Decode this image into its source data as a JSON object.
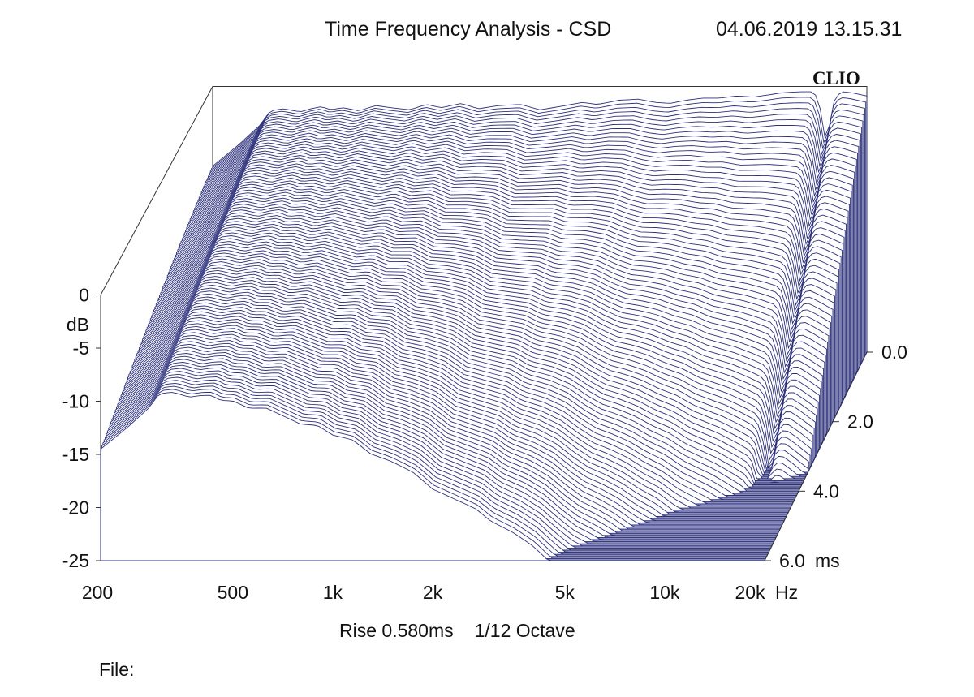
{
  "header": {
    "title": "Time Frequency Analysis - CSD",
    "timestamp": "04.06.2019 13.15.31"
  },
  "logo_text": "CLIO",
  "footer": {
    "rise": "Rise 0.580ms",
    "smoothing": "1/12 Octave"
  },
  "file_label": "File:",
  "colors": {
    "trace": "#2b2f7a",
    "fill": "#ffffff",
    "frame": "#333333"
  },
  "chart_data": {
    "type": "waterfall",
    "title": "Time Frequency Analysis - CSD",
    "x_axis": {
      "label": "Hz",
      "scale": "log",
      "range": [
        200,
        20000
      ],
      "ticks": [
        {
          "value": 200,
          "label": "200"
        },
        {
          "value": 500,
          "label": "500"
        },
        {
          "value": 1000,
          "label": "1k"
        },
        {
          "value": 2000,
          "label": "2k"
        },
        {
          "value": 5000,
          "label": "5k"
        },
        {
          "value": 10000,
          "label": "10k"
        },
        {
          "value": 20000,
          "label": "20k"
        }
      ]
    },
    "y_axis": {
      "label": "dB",
      "range": [
        -25,
        0
      ],
      "ticks": [
        {
          "value": 0,
          "label": "0"
        },
        {
          "value": -5,
          "label": "-5"
        },
        {
          "value": -10,
          "label": "-10"
        },
        {
          "value": -15,
          "label": "-15"
        },
        {
          "value": -20,
          "label": "-20"
        },
        {
          "value": -25,
          "label": "-25"
        }
      ]
    },
    "z_axis": {
      "label": "ms",
      "range": [
        0,
        6
      ],
      "ticks": [
        {
          "value": 0,
          "label": "0.0"
        },
        {
          "value": 2,
          "label": "2.0"
        },
        {
          "value": 4,
          "label": "4.0"
        },
        {
          "value": 6,
          "label": "6.0"
        }
      ]
    },
    "slice_count": 100,
    "initial_response": {
      "frequency_hz": [
        200,
        240,
        280,
        300,
        330,
        370,
        400,
        430,
        460,
        500,
        560,
        630,
        700,
        800,
        900,
        1000,
        1150,
        1300,
        1500,
        1750,
        2000,
        2300,
        2700,
        3000,
        3500,
        4000,
        4500,
        5000,
        5600,
        6300,
        7100,
        8000,
        9000,
        10000,
        11000,
        12500,
        13500,
        14200,
        15000,
        16000,
        17000,
        18000,
        20000
      ],
      "level_db": [
        -7.5,
        -5.5,
        -3.6,
        -2.3,
        -2.1,
        -2.4,
        -2.1,
        -1.9,
        -2.2,
        -2.0,
        -2.3,
        -1.8,
        -2.0,
        -2.2,
        -1.7,
        -2.0,
        -1.6,
        -2.1,
        -1.8,
        -1.7,
        -2.2,
        -1.9,
        -1.5,
        -1.7,
        -1.3,
        -1.2,
        -1.5,
        -1.6,
        -1.3,
        -1.1,
        -1.1,
        -0.9,
        -1.0,
        -0.8,
        -0.6,
        -0.5,
        -0.5,
        -1.0,
        -5.4,
        -0.9,
        -0.5,
        -0.6,
        -0.9
      ]
    },
    "decay_resonances": [
      {
        "frequency_hz": 300,
        "decay_ms": 6.0
      },
      {
        "frequency_hz": 370,
        "decay_ms": 3.0
      },
      {
        "frequency_hz": 600,
        "decay_ms": 4.6
      },
      {
        "frequency_hz": 1000,
        "decay_ms": 1.6
      },
      {
        "frequency_hz": 1350,
        "decay_ms": 3.0
      },
      {
        "frequency_hz": 1900,
        "decay_ms": 1.0
      },
      {
        "frequency_hz": 2100,
        "decay_ms": 0.9
      },
      {
        "frequency_hz": 2400,
        "decay_ms": 0.8
      },
      {
        "frequency_hz": 4800,
        "decay_ms": 0.6
      }
    ]
  }
}
